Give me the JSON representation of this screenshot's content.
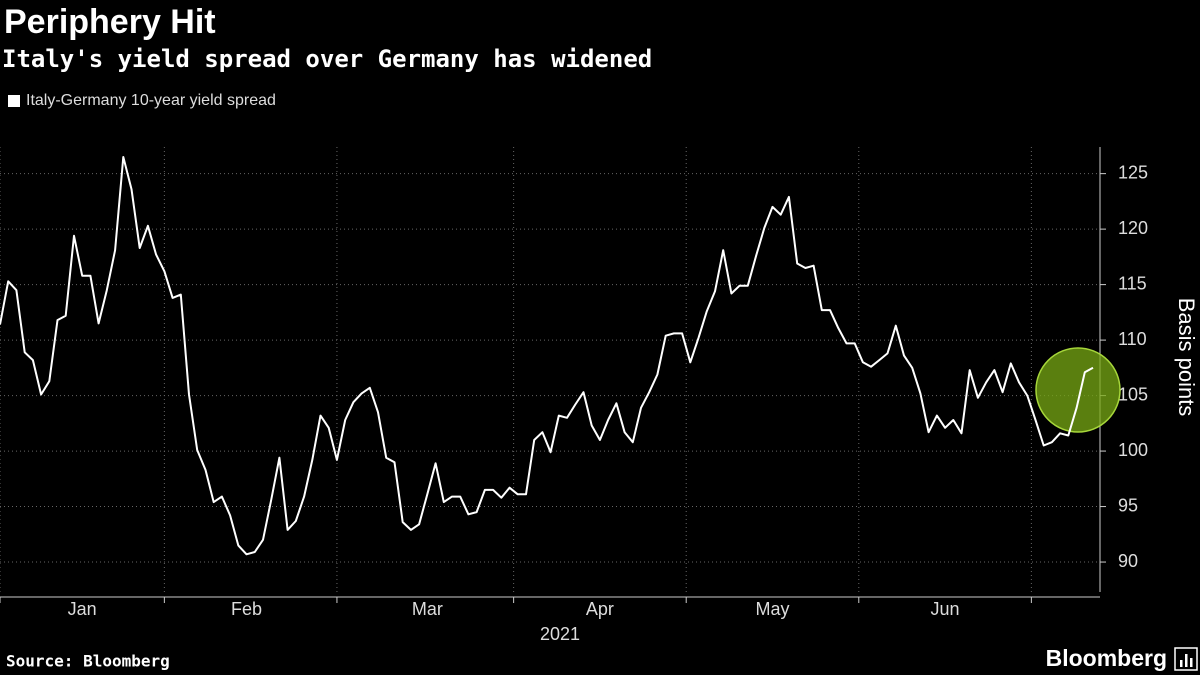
{
  "chart_data": {
    "type": "line",
    "title": "Periphery Hit",
    "subtitle": "Italy's yield spread over Germany has widened",
    "xlabel": "2021",
    "ylabel": "Basis points",
    "source": "Source: Bloomberg",
    "brand": "Bloomberg",
    "categories": [
      null,
      null,
      null,
      null,
      null,
      null,
      null,
      null,
      null,
      null,
      "Jan",
      null,
      null,
      null,
      null,
      null,
      null,
      null,
      null,
      null,
      null,
      null,
      null,
      null,
      null,
      null,
      null,
      null,
      null,
      null,
      "Feb",
      null,
      null,
      null,
      null,
      null,
      null,
      null,
      null,
      null,
      null,
      null,
      null,
      null,
      null,
      null,
      null,
      null,
      null,
      null,
      null,
      null,
      "Mar",
      null,
      null,
      null,
      null,
      null,
      null,
      null,
      null,
      null,
      null,
      null,
      null,
      null,
      null,
      null,
      null,
      null,
      null,
      null,
      null,
      "Apr",
      null,
      null,
      null,
      null,
      null,
      null,
      null,
      null,
      null,
      null,
      null,
      null,
      null,
      null,
      null,
      null,
      null,
      null,
      null,
      null,
      "May",
      null,
      null,
      null,
      null,
      null,
      null,
      null,
      null,
      null,
      null,
      null,
      null,
      null,
      null,
      null,
      null,
      null,
      null,
      null,
      null,
      "Jun",
      null,
      null,
      null,
      null,
      null,
      null,
      null,
      null,
      null,
      null,
      null,
      null,
      null,
      null,
      null,
      null,
      null,
      null
    ],
    "series": [
      {
        "name": "Italy-Germany 10-year yield spread",
        "color": "#ffffff",
        "values": [
          111.4,
          115.3,
          114.5,
          108.9,
          108.2,
          105.1,
          106.3,
          111.8,
          112.2,
          119.4,
          115.8,
          115.8,
          111.5,
          114.5,
          118.1,
          126.5,
          123.6,
          118.3,
          120.3,
          117.7,
          116.2,
          113.8,
          114.1,
          105.1,
          100.1,
          98.3,
          95.4,
          95.9,
          94.2,
          91.5,
          90.7,
          90.9,
          92.0,
          95.6,
          99.4,
          92.9,
          93.7,
          95.9,
          99.2,
          103.2,
          102.1,
          99.2,
          102.8,
          104.4,
          105.2,
          105.7,
          103.5,
          99.4,
          99.0,
          93.6,
          92.9,
          93.4,
          96.1,
          98.9,
          95.4,
          95.9,
          95.9,
          94.3,
          94.5,
          96.5,
          96.5,
          95.8,
          96.7,
          96.1,
          96.1,
          101.0,
          101.7,
          99.9,
          103.2,
          103.0,
          104.2,
          105.3,
          102.3,
          101.0,
          102.8,
          104.3,
          101.7,
          100.8,
          103.9,
          105.3,
          106.9,
          110.4,
          110.6,
          110.6,
          108.0,
          110.2,
          112.6,
          114.4,
          118.1,
          114.2,
          114.9,
          114.9,
          117.6,
          120.1,
          122.0,
          121.3,
          122.9,
          116.9,
          116.5,
          116.7,
          112.7,
          112.7,
          111.1,
          109.7,
          109.7,
          108.0,
          107.6,
          108.2,
          108.8,
          111.3,
          108.6,
          107.5,
          105.2,
          101.7,
          103.2,
          102.1,
          102.8,
          101.6,
          107.3,
          104.8,
          106.2,
          107.3,
          105.3,
          107.9,
          106.2,
          105.0,
          102.8,
          100.5,
          100.8,
          101.6,
          101.4,
          103.9,
          107.1,
          107.5
        ]
      }
    ],
    "ylim": [
      87.3,
      127.4
    ],
    "yticks": [
      90,
      95,
      100,
      105,
      110,
      115,
      120,
      125
    ],
    "grid": true
  }
}
